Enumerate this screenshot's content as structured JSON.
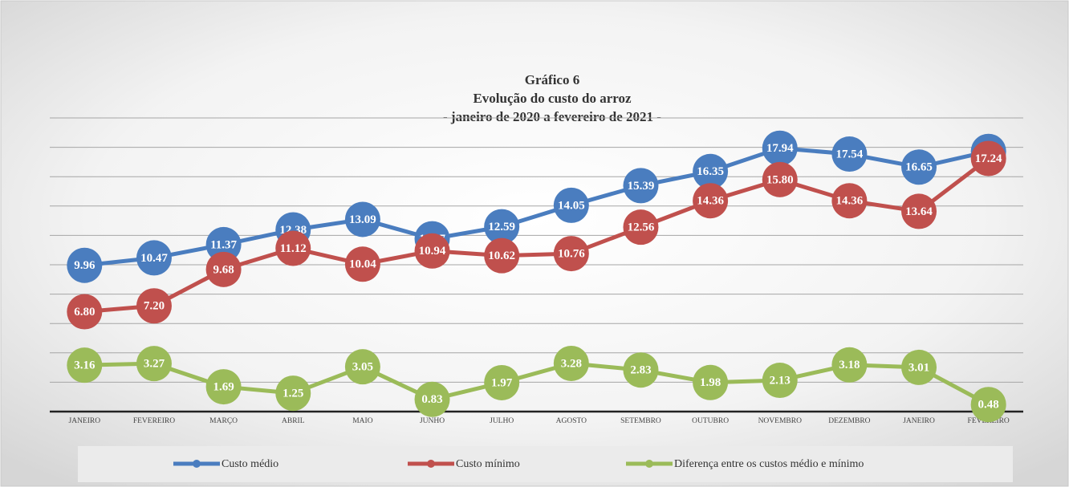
{
  "chart_data": {
    "type": "line",
    "title": [
      "Gráfico 6",
      "Evolução do custo do arroz",
      "- janeiro de 2020 a fevereiro de 2021 -"
    ],
    "categories": [
      "JANEIRO",
      "FEVEREIRO",
      "MARÇO",
      "ABRIL",
      "MAIO",
      "JUNHO",
      "JULHO",
      "AGOSTO",
      "SETEMBRO",
      "OUTUBRO",
      "NOVEMBRO",
      "DEZEMBRO",
      "JANEIRO",
      "FEVEREIRO"
    ],
    "series": [
      {
        "name": "Custo médio",
        "color": "#4a7dbf",
        "values": [
          9.96,
          10.47,
          11.37,
          12.38,
          13.09,
          11.77,
          12.59,
          14.05,
          15.39,
          16.35,
          17.94,
          17.54,
          16.65,
          17.72
        ],
        "value_labels": [
          "9.96",
          "10.47",
          "11.37",
          "12.38",
          "13.09",
          "11.77",
          "12.59",
          "14.05",
          "15.39",
          "16.35",
          "17.94",
          "17.54",
          "16.65",
          "17.72"
        ]
      },
      {
        "name": "Custo mínimo",
        "color": "#c0504d",
        "values": [
          6.8,
          7.2,
          9.68,
          11.12,
          10.04,
          10.94,
          10.62,
          10.76,
          12.56,
          14.36,
          15.8,
          14.36,
          13.64,
          17.24
        ],
        "value_labels": [
          "6.80",
          "7.20",
          "9.68",
          "11.12",
          "10.04",
          "10.94",
          "10.62",
          "10.76",
          "12.56",
          "14.36",
          "15.80",
          "14.36",
          "13.64",
          "17.24"
        ]
      },
      {
        "name": "Diferença entre os custos médio e mínimo",
        "color": "#9bbb59",
        "values": [
          3.16,
          3.27,
          1.69,
          1.25,
          3.05,
          0.83,
          1.97,
          3.28,
          2.83,
          1.98,
          2.13,
          3.18,
          3.01,
          0.48
        ],
        "value_labels": [
          "3.16",
          "3.27",
          "1.69",
          "1.25",
          "3.05",
          "0.83",
          "1.97",
          "3.28",
          "2.83",
          "1.98",
          "2.13",
          "3.18",
          "3.01",
          "0.48"
        ]
      }
    ],
    "ylim": [
      0,
      20
    ],
    "yticks": [
      0,
      2,
      4,
      6,
      8,
      10,
      12,
      14,
      16,
      18,
      20
    ],
    "grid": true,
    "legend": "bottom"
  }
}
